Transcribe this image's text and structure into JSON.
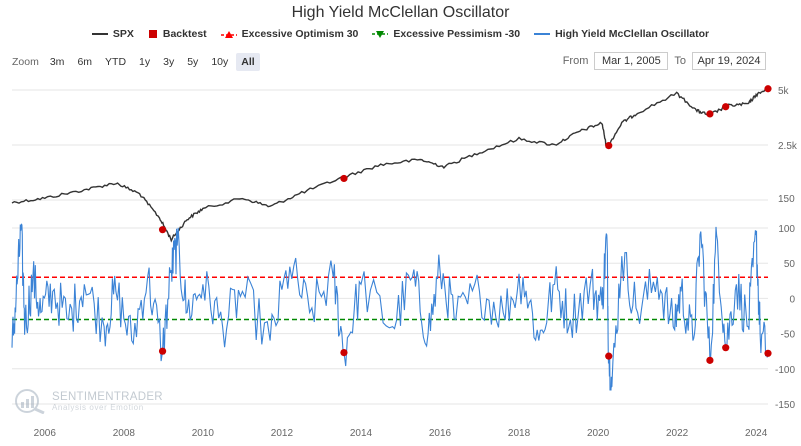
{
  "chart_data": {
    "type": "line",
    "title": "High Yield McClellan Oscillator",
    "legend": [
      {
        "name": "SPX",
        "color": "#333333",
        "marker": "line"
      },
      {
        "name": "Backtest",
        "color": "#cc0000",
        "marker": "square"
      },
      {
        "name": "Excessive Optimism 30",
        "color": "#ff0000",
        "marker": "triangle-up"
      },
      {
        "name": "Excessive Pessimism -30",
        "color": "#008800",
        "marker": "triangle-down"
      },
      {
        "name": "High Yield McClellan Oscillator",
        "color": "#3b83d6",
        "marker": "line"
      }
    ],
    "x_ticks": [
      "2006",
      "2008",
      "2010",
      "2012",
      "2014",
      "2016",
      "2018",
      "2020",
      "2022",
      "2024"
    ],
    "spx_axis": {
      "scale": "log",
      "ticks": [
        "5k",
        "2.5k",
        "150"
      ]
    },
    "osc_axis": {
      "range": [
        -150,
        100
      ],
      "ticks": [
        "100",
        "50",
        "0",
        "-50",
        "-100",
        "-150"
      ]
    },
    "thresholds": {
      "optimism": 30,
      "pessimism": -30
    },
    "spx_series": {
      "name": "SPX",
      "x": [
        2005.17,
        2006.0,
        2007.0,
        2007.8,
        2008.4,
        2008.9,
        2009.2,
        2009.6,
        2010.0,
        2011.0,
        2011.7,
        2012.5,
        2013.5,
        2014.5,
        2015.5,
        2016.1,
        2017.0,
        2018.0,
        2018.9,
        2019.5,
        2020.1,
        2020.22,
        2020.6,
        2021.0,
        2021.99,
        2022.5,
        2022.8,
        2023.3,
        2023.8,
        2024.0,
        2024.3
      ],
      "y": [
        1210,
        1280,
        1420,
        1550,
        1350,
        1000,
        760,
        980,
        1120,
        1280,
        1150,
        1370,
        1650,
        1950,
        2080,
        1900,
        2280,
        2700,
        2500,
        2950,
        3300,
        2400,
        3300,
        3750,
        4790,
        3850,
        3650,
        4100,
        4200,
        4700,
        5080
      ]
    },
    "backtest_points": [
      {
        "x": 2008.98,
        "spx": 860,
        "osc": -75
      },
      {
        "x": 2013.57,
        "spx": 1640,
        "osc": -77
      },
      {
        "x": 2020.27,
        "spx": 2480,
        "osc": -82
      },
      {
        "x": 2022.83,
        "spx": 3700,
        "osc": -88
      },
      {
        "x": 2023.23,
        "spx": 4050,
        "osc": -70
      },
      {
        "x": 2024.3,
        "spx": 5080,
        "osc": -78
      }
    ],
    "oscillator_series": {
      "name": "High Yield McClellan Oscillator",
      "x": [
        2005.17,
        2005.3,
        2005.4,
        2005.5,
        2005.7,
        2005.9,
        2006.2,
        2006.6,
        2007.0,
        2007.5,
        2007.8,
        2008.2,
        2008.6,
        2008.98,
        2009.2,
        2009.35,
        2009.6,
        2010.0,
        2010.5,
        2011.0,
        2011.7,
        2012.2,
        2012.7,
        2013.3,
        2013.57,
        2014.0,
        2014.8,
        2015.3,
        2015.7,
        2016.0,
        2016.4,
        2017.0,
        2017.6,
        2018.1,
        2018.5,
        2018.9,
        2019.3,
        2019.8,
        2020.1,
        2020.22,
        2020.27,
        2020.35,
        2020.6,
        2021.0,
        2021.5,
        2021.9,
        2022.1,
        2022.4,
        2022.6,
        2022.83,
        2023.0,
        2023.23,
        2023.5,
        2023.8,
        2024.0,
        2024.1,
        2024.3
      ],
      "y": [
        -70,
        20,
        100,
        -40,
        30,
        -20,
        10,
        -30,
        20,
        -40,
        10,
        -60,
        30,
        -75,
        40,
        75,
        -20,
        20,
        -40,
        10,
        -60,
        45,
        -20,
        30,
        -77,
        20,
        -40,
        30,
        -50,
        40,
        -30,
        10,
        -20,
        30,
        -60,
        20,
        -30,
        20,
        -10,
        90,
        -82,
        -125,
        60,
        -20,
        30,
        -40,
        10,
        -60,
        95,
        -88,
        90,
        -70,
        20,
        -40,
        90,
        -50,
        -78
      ]
    }
  },
  "ui": {
    "zoom_label": "Zoom",
    "zoom_buttons": [
      "3m",
      "6m",
      "YTD",
      "1y",
      "3y",
      "5y",
      "10y",
      "All"
    ],
    "active_zoom": "All",
    "from_label": "From",
    "from_value": "Mar 1, 2005",
    "to_label": "To",
    "to_value": "Apr 19, 2024"
  },
  "watermark": {
    "name": "SENTIMENTRADER",
    "tagline": "Analysis over Emotion"
  }
}
